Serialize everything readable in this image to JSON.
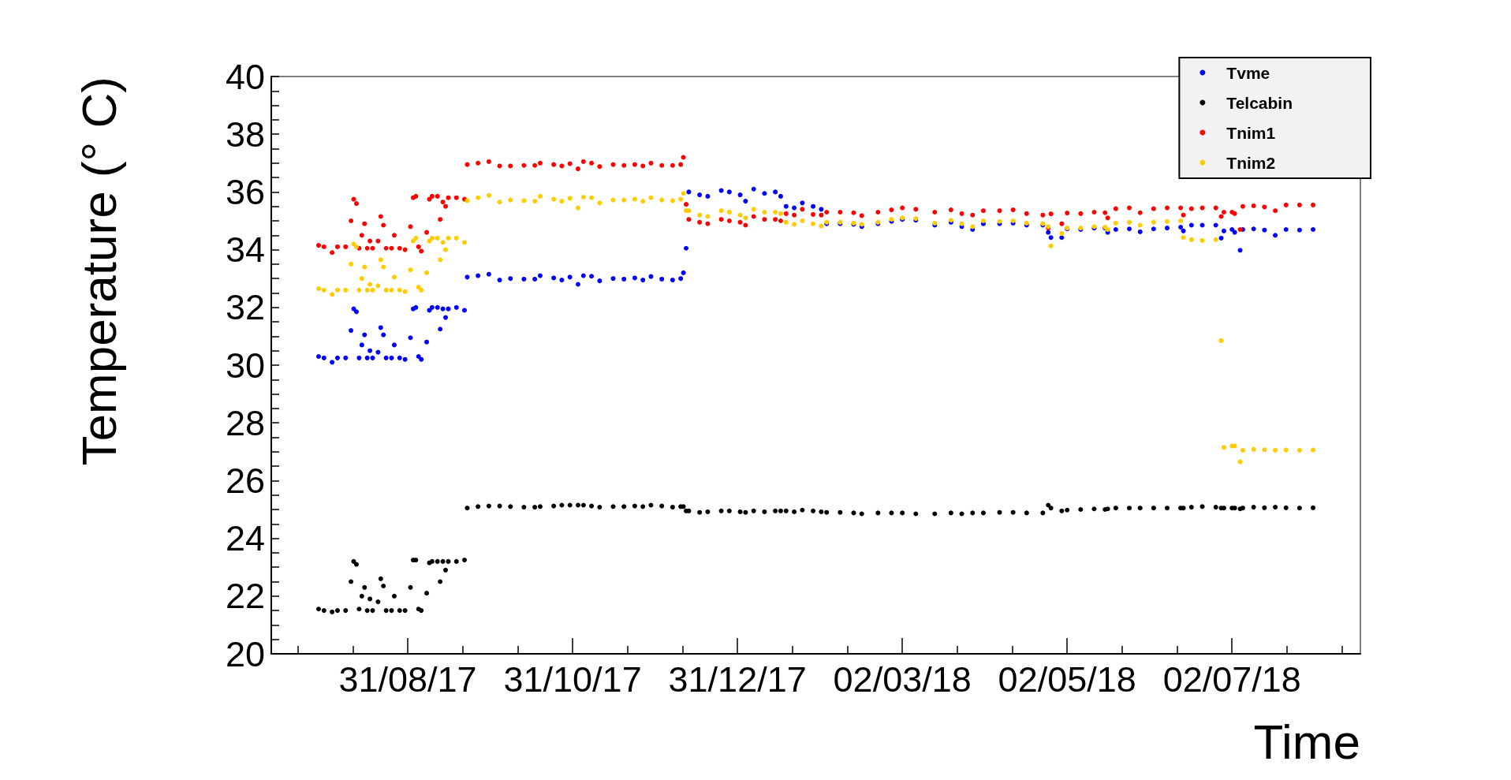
{
  "chart_data": {
    "type": "scatter",
    "xlabel": "Time",
    "ylabel": "Temperature (° C)",
    "marker": "circle",
    "grid": false,
    "legend": "top right",
    "xlim": [
      "2017-07-11T12:00",
      "2018-08-18T12:00"
    ],
    "ylim": [
      20,
      40
    ],
    "xticks": [
      {
        "value": "2017-07-21T08:00",
        "label": null
      },
      {
        "value": "2017-08-10T16:00",
        "label": null
      },
      {
        "value": "2017-08-31",
        "label": "31/08/17"
      },
      {
        "value": "2017-09-20T08:00",
        "label": null
      },
      {
        "value": "2017-10-10T16:00",
        "label": null
      },
      {
        "value": "2017-10-31",
        "label": "31/10/17"
      },
      {
        "value": "2017-11-20T08:00",
        "label": null
      },
      {
        "value": "2017-12-10T16:00",
        "label": null
      },
      {
        "value": "2017-12-31",
        "label": "31/12/17"
      },
      {
        "value": "2018-01-20T08:00",
        "label": null
      },
      {
        "value": "2018-02-09T16:00",
        "label": null
      },
      {
        "value": "2018-03-02",
        "label": "02/03/18"
      },
      {
        "value": "2018-03-22T08:00",
        "label": null
      },
      {
        "value": "2018-04-11T16:00",
        "label": null
      },
      {
        "value": "2018-05-02",
        "label": "02/05/18"
      },
      {
        "value": "2018-05-22T08:00",
        "label": null
      },
      {
        "value": "2018-06-11T16:00",
        "label": null
      },
      {
        "value": "2018-07-02",
        "label": "02/07/18"
      },
      {
        "value": "2018-07-22T08:00",
        "label": null
      },
      {
        "value": "2018-08-11T16:00",
        "label": null
      }
    ],
    "yticks": [
      20,
      {
        "value": 20.5,
        "label": null
      },
      {
        "value": 21,
        "label": null
      },
      {
        "value": 21.5,
        "label": null
      },
      22,
      {
        "value": 22.5,
        "label": null
      },
      {
        "value": 23,
        "label": null
      },
      {
        "value": 23.5,
        "label": null
      },
      24,
      {
        "value": 24.5,
        "label": null
      },
      {
        "value": 25,
        "label": null
      },
      {
        "value": 25.5,
        "label": null
      },
      26,
      {
        "value": 26.5,
        "label": null
      },
      {
        "value": 27,
        "label": null
      },
      {
        "value": 27.5,
        "label": null
      },
      28,
      {
        "value": 28.5,
        "label": null
      },
      {
        "value": 29,
        "label": null
      },
      {
        "value": 29.5,
        "label": null
      },
      30,
      {
        "value": 30.5,
        "label": null
      },
      {
        "value": 31,
        "label": null
      },
      {
        "value": 31.5,
        "label": null
      },
      32,
      {
        "value": 32.5,
        "label": null
      },
      {
        "value": 33,
        "label": null
      },
      {
        "value": 33.5,
        "label": null
      },
      34,
      {
        "value": 34.5,
        "label": null
      },
      {
        "value": 35,
        "label": null
      },
      {
        "value": 35.5,
        "label": null
      },
      36,
      {
        "value": 36.5,
        "label": null
      },
      {
        "value": 37,
        "label": null
      },
      {
        "value": 37.5,
        "label": null
      },
      38,
      {
        "value": 38.5,
        "label": null
      },
      {
        "value": 39,
        "label": null
      },
      {
        "value": 39.5,
        "label": null
      },
      40
    ],
    "x": [
      "2017-07-29",
      "2017-07-31",
      "2017-08-03",
      "2017-08-05",
      "2017-08-08",
      "2017-08-10",
      "2017-08-11",
      "2017-08-12",
      "2017-08-13",
      "2017-08-14",
      "2017-08-15",
      "2017-08-16",
      "2017-08-17",
      "2017-08-18",
      "2017-08-20",
      "2017-08-21",
      "2017-08-22",
      "2017-08-23",
      "2017-08-25",
      "2017-08-26",
      "2017-08-28",
      "2017-08-30",
      "2017-09-01",
      "2017-09-02",
      "2017-09-03",
      "2017-09-04",
      "2017-09-05",
      "2017-09-07",
      "2017-09-08",
      "2017-09-09",
      "2017-09-11",
      "2017-09-12",
      "2017-09-13",
      "2017-09-14",
      "2017-09-15",
      "2017-09-18",
      "2017-09-21",
      "2017-09-22",
      "2017-09-26",
      "2017-09-30",
      "2017-10-04",
      "2017-10-08",
      "2017-10-13",
      "2017-10-17",
      "2017-10-19",
      "2017-10-24",
      "2017-10-27",
      "2017-10-30",
      "2017-11-02",
      "2017-11-04",
      "2017-11-07",
      "2017-11-10",
      "2017-11-15",
      "2017-11-19",
      "2017-11-23",
      "2017-11-26",
      "2017-11-29",
      "2017-12-03",
      "2017-12-07",
      "2017-12-10",
      "2017-12-11",
      "2017-12-12",
      "2017-12-13",
      "2017-12-17",
      "2017-12-20",
      "2017-12-25",
      "2017-12-28",
      "2018-01-01",
      "2018-01-03",
      "2018-01-06",
      "2018-01-10",
      "2018-01-14",
      "2018-01-16",
      "2018-01-18",
      "2018-01-21",
      "2018-01-24",
      "2018-01-28",
      "2018-01-31",
      "2018-02-02",
      "2018-02-07",
      "2018-02-12",
      "2018-02-15",
      "2018-02-21",
      "2018-02-26",
      "2018-03-02",
      "2018-03-07",
      "2018-03-14",
      "2018-03-20",
      "2018-03-24",
      "2018-03-28",
      "2018-04-01",
      "2018-04-07",
      "2018-04-12",
      "2018-04-17",
      "2018-04-23",
      "2018-04-25",
      "2018-04-26",
      "2018-04-30",
      "2018-05-02",
      "2018-05-07",
      "2018-05-12",
      "2018-05-16",
      "2018-05-17",
      "2018-05-20",
      "2018-05-25",
      "2018-05-29",
      "2018-06-03",
      "2018-06-08",
      "2018-06-13",
      "2018-06-14",
      "2018-06-17",
      "2018-06-21",
      "2018-06-26",
      "2018-06-28",
      "2018-06-29",
      "2018-07-02",
      "2018-07-03",
      "2018-07-05",
      "2018-07-06",
      "2018-07-10",
      "2018-07-14",
      "2018-07-18",
      "2018-07-22",
      "2018-07-27",
      "2018-08-01"
    ],
    "series": [
      {
        "name": "Tvme",
        "color": "#0000ff",
        "values": [
          30.3,
          30.25,
          30.1,
          30.25,
          30.25,
          31.2,
          31.95,
          31.85,
          30.25,
          30.7,
          31.05,
          30.25,
          30.5,
          30.25,
          30.45,
          31.3,
          31.05,
          30.25,
          30.25,
          30.7,
          30.25,
          30.2,
          30.95,
          31.95,
          32.0,
          30.3,
          30.2,
          30.8,
          31.9,
          32.0,
          32.0,
          31.25,
          31.95,
          31.65,
          31.95,
          32.0,
          31.9,
          33.05,
          33.1,
          33.15,
          32.95,
          33.0,
          32.98,
          32.98,
          33.1,
          33.02,
          32.95,
          33.05,
          32.8,
          33.1,
          33.08,
          32.92,
          33.0,
          32.98,
          33.02,
          32.95,
          33.07,
          32.98,
          32.95,
          33.0,
          33.2,
          34.05,
          36.0,
          35.9,
          35.85,
          36.05,
          36.0,
          35.9,
          35.68,
          36.1,
          35.95,
          36.0,
          35.85,
          35.5,
          35.45,
          35.62,
          35.5,
          35.4,
          34.9,
          34.9,
          34.88,
          34.8,
          34.9,
          34.98,
          35.05,
          35.02,
          34.85,
          34.95,
          34.8,
          34.7,
          34.9,
          34.9,
          34.92,
          34.85,
          34.85,
          34.6,
          34.42,
          34.42,
          34.72,
          34.7,
          34.75,
          34.75,
          34.6,
          34.7,
          34.72,
          34.62,
          34.72,
          34.75,
          34.78,
          34.65,
          34.85,
          34.85,
          34.85,
          34.4,
          34.65,
          34.7,
          34.6,
          33.98,
          34.7,
          34.72,
          34.68,
          34.5,
          34.7,
          34.68,
          34.7
        ]
      },
      {
        "name": "Telcabin",
        "color": "#000000",
        "values": [
          21.55,
          21.5,
          21.45,
          21.5,
          21.5,
          22.5,
          23.2,
          23.1,
          21.55,
          22.0,
          22.3,
          21.5,
          21.9,
          21.5,
          21.8,
          22.6,
          22.35,
          21.5,
          21.5,
          22.0,
          21.5,
          21.5,
          22.3,
          23.25,
          23.25,
          21.55,
          21.5,
          22.1,
          23.15,
          23.2,
          23.2,
          22.5,
          23.2,
          22.9,
          23.2,
          23.2,
          23.25,
          25.05,
          25.1,
          25.12,
          25.12,
          25.1,
          25.08,
          25.08,
          25.1,
          25.12,
          25.15,
          25.15,
          25.15,
          25.15,
          25.12,
          25.08,
          25.1,
          25.1,
          25.12,
          25.1,
          25.15,
          25.12,
          25.08,
          25.1,
          25.1,
          24.95,
          24.95,
          24.9,
          24.92,
          24.95,
          24.95,
          24.92,
          24.9,
          24.95,
          24.92,
          24.95,
          24.95,
          24.95,
          24.92,
          24.98,
          24.95,
          24.92,
          24.9,
          24.9,
          24.88,
          24.85,
          24.88,
          24.88,
          24.88,
          24.85,
          24.85,
          24.88,
          24.85,
          24.88,
          24.88,
          24.9,
          24.9,
          24.88,
          24.88,
          25.15,
          25.05,
          24.95,
          24.98,
          25.0,
          25.02,
          25.0,
          25.02,
          25.05,
          25.05,
          25.05,
          25.05,
          25.05,
          25.05,
          25.05,
          25.08,
          25.1,
          25.08,
          25.05,
          25.05,
          25.05,
          25.05,
          25.02,
          25.05,
          25.08,
          25.06,
          25.08,
          25.06,
          25.05,
          25.06
        ]
      },
      {
        "name": "Tnim1",
        "color": "#ff0000",
        "values": [
          34.15,
          34.1,
          33.9,
          34.1,
          34.1,
          35.0,
          35.75,
          35.6,
          34.05,
          34.5,
          34.9,
          34.05,
          34.3,
          34.05,
          34.3,
          35.15,
          34.85,
          34.05,
          34.05,
          34.5,
          34.05,
          34.0,
          34.8,
          35.8,
          35.85,
          34.1,
          33.95,
          34.6,
          35.75,
          35.85,
          35.85,
          35.05,
          35.65,
          35.5,
          35.8,
          35.8,
          35.75,
          36.95,
          37.0,
          37.05,
          36.9,
          36.9,
          36.92,
          36.92,
          37.0,
          36.95,
          36.9,
          36.98,
          36.8,
          37.05,
          37.0,
          36.88,
          36.95,
          36.92,
          36.95,
          36.9,
          37.0,
          36.92,
          36.92,
          36.95,
          37.2,
          35.57,
          35.05,
          34.95,
          34.9,
          35.05,
          35.0,
          34.95,
          34.85,
          35.15,
          35.05,
          35.05,
          35.0,
          35.25,
          35.2,
          35.4,
          35.22,
          35.2,
          35.3,
          35.3,
          35.28,
          35.18,
          35.3,
          35.38,
          35.45,
          35.4,
          35.3,
          35.38,
          35.25,
          35.2,
          35.35,
          35.35,
          35.38,
          35.25,
          35.2,
          34.75,
          35.24,
          34.9,
          35.27,
          35.25,
          35.3,
          35.28,
          35.1,
          35.42,
          35.45,
          35.28,
          35.42,
          35.45,
          35.45,
          35.2,
          35.42,
          35.45,
          35.45,
          35.15,
          35.3,
          35.3,
          35.25,
          34.7,
          35.5,
          35.52,
          35.48,
          35.35,
          35.55,
          35.55,
          35.55
        ]
      },
      {
        "name": "Tnim2",
        "color": "#ffcc00",
        "values": [
          32.65,
          32.6,
          32.45,
          32.6,
          32.6,
          33.5,
          34.2,
          34.1,
          32.6,
          33.0,
          33.4,
          32.6,
          32.8,
          32.6,
          32.75,
          33.65,
          33.4,
          32.6,
          32.6,
          33.05,
          32.6,
          32.55,
          33.3,
          34.3,
          34.4,
          32.7,
          32.6,
          33.2,
          34.3,
          34.4,
          34.4,
          33.65,
          34.25,
          34.0,
          34.4,
          34.4,
          34.25,
          35.7,
          35.8,
          35.88,
          35.65,
          35.72,
          35.7,
          35.68,
          35.85,
          35.75,
          35.68,
          35.78,
          35.45,
          35.82,
          35.8,
          35.62,
          35.72,
          35.72,
          35.75,
          35.68,
          35.8,
          35.72,
          35.7,
          35.75,
          35.95,
          35.35,
          35.35,
          35.2,
          35.15,
          35.35,
          35.3,
          35.2,
          35.1,
          35.4,
          35.3,
          35.3,
          35.25,
          34.95,
          34.88,
          35.0,
          34.9,
          34.82,
          34.95,
          34.95,
          34.92,
          34.88,
          34.95,
          35.05,
          35.1,
          35.08,
          34.92,
          35.02,
          34.9,
          34.8,
          35.0,
          34.98,
          35.0,
          34.92,
          34.9,
          34.8,
          34.13,
          34.56,
          34.75,
          34.75,
          34.8,
          34.78,
          34.7,
          34.92,
          34.95,
          34.85,
          34.95,
          34.98,
          35.0,
          34.42,
          34.35,
          34.32,
          34.35,
          30.85,
          27.15,
          27.2,
          27.2,
          26.65,
          27.05,
          27.08,
          27.07,
          27.05,
          27.06,
          27.05,
          27.06
        ]
      }
    ]
  }
}
